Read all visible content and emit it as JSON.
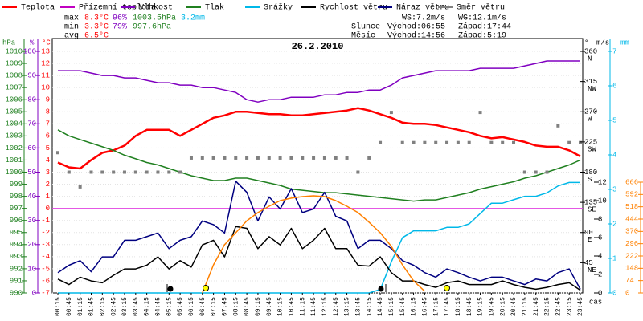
{
  "chart_data": {
    "type": "line",
    "title": "26.2.2010",
    "xlabel": "čas",
    "ylabel": "°C",
    "ylim": [
      -7,
      13
    ],
    "yticks": [
      -7,
      -6,
      -5,
      -4,
      -3,
      -2,
      -1,
      0,
      1,
      2,
      3,
      4,
      5,
      6,
      7,
      8,
      9,
      10,
      11,
      12,
      13
    ],
    "axes": {
      "hPa": {
        "label": "hPa",
        "ylim": [
          990,
          1010
        ],
        "yticks": [
          990,
          991,
          992,
          993,
          994,
          995,
          996,
          997,
          998,
          999,
          1000,
          1001,
          1002,
          1003,
          1004,
          1005,
          1006,
          1007,
          1008,
          1009,
          1010
        ]
      },
      "pct": {
        "label": "%",
        "ylim": [
          0,
          100
        ],
        "yticks": [
          0,
          10,
          20,
          30,
          40,
          50,
          60,
          70,
          80,
          90,
          100
        ]
      },
      "deg": {
        "label": "°",
        "ylim": [
          0,
          360
        ],
        "yticks": [
          45,
          90,
          135,
          180,
          225,
          270,
          315,
          360
        ],
        "compass": [
          "NE",
          "E",
          "SE",
          "S",
          "SW",
          "W",
          "NW",
          "N"
        ]
      },
      "ms": {
        "label": "m/s",
        "ylim": [
          0,
          12
        ],
        "yticks": [
          0,
          2,
          4,
          6,
          8,
          10,
          12
        ]
      },
      "mm": {
        "label": "mm",
        "ylim": [
          0,
          7
        ],
        "yticks": [
          0,
          1,
          2,
          3,
          4,
          5,
          6,
          7
        ]
      },
      "wm": {
        "ylim": [
          0,
          666
        ],
        "yticks": [
          0,
          74,
          148,
          222,
          296,
          370,
          444,
          518,
          592,
          666
        ]
      }
    },
    "categories": [
      "00:15",
      "00:45",
      "01:15",
      "01:45",
      "02:15",
      "02:45",
      "03:15",
      "03:45",
      "04:15",
      "04:45",
      "05:15",
      "05:45",
      "06:15",
      "06:45",
      "07:15",
      "07:45",
      "08:15",
      "08:45",
      "09:15",
      "09:45",
      "10:15",
      "10:45",
      "11:15",
      "11:45",
      "12:15",
      "12:45",
      "13:15",
      "13:45",
      "14:15",
      "14:45",
      "15:15",
      "15:45",
      "16:15",
      "16:45",
      "17:15",
      "17:45",
      "18:15",
      "18:45",
      "19:15",
      "19:45",
      "20:15",
      "20:45",
      "21:15",
      "21:45",
      "22:15",
      "22:45",
      "23:15",
      "23:45"
    ],
    "series": [
      {
        "name": "Teplota",
        "color": "#ff0000",
        "values": [
          3.8,
          3.4,
          3.3,
          4.0,
          4.6,
          4.8,
          5.2,
          6.0,
          6.5,
          6.5,
          6.5,
          6.0,
          6.5,
          7.0,
          7.5,
          7.7,
          8.0,
          8.0,
          7.9,
          7.8,
          7.8,
          7.7,
          7.7,
          7.8,
          7.9,
          8.0,
          8.1,
          8.3,
          8.1,
          7.8,
          7.5,
          7.1,
          7.0,
          7.0,
          6.9,
          6.7,
          6.5,
          6.3,
          6.0,
          5.8,
          5.9,
          5.7,
          5.5,
          5.2,
          5.1,
          5.1,
          4.8,
          4.3
        ]
      },
      {
        "name": "Přízemní teplota",
        "color": "#c000c0",
        "values": [
          null,
          null,
          null,
          null,
          null,
          null,
          null,
          null,
          null,
          null,
          null,
          null,
          null,
          null,
          null,
          null,
          null,
          null,
          null,
          null,
          null,
          null,
          null,
          null,
          null,
          null,
          null,
          null,
          null,
          null,
          null,
          null,
          null,
          null,
          null,
          null,
          null,
          null,
          null,
          null,
          null,
          null,
          null,
          null,
          null,
          null,
          null,
          null
        ]
      },
      {
        "name": "Vlhkost",
        "color": "#8000c0",
        "axis": "pct",
        "values": [
          92,
          92,
          92,
          91,
          90,
          90,
          89,
          89,
          88,
          87,
          87,
          86,
          86,
          85,
          85,
          84,
          83,
          80,
          79,
          80,
          80,
          81,
          81,
          81,
          82,
          82,
          83,
          83,
          84,
          84,
          86,
          89,
          90,
          91,
          92,
          92,
          92,
          92,
          93,
          93,
          93,
          93,
          94,
          95,
          96,
          96,
          96,
          96
        ]
      },
      {
        "name": "Tlak",
        "color": "#208020",
        "axis": "hPa",
        "values": [
          1003.5,
          1003.0,
          1002.7,
          1002.4,
          1002.1,
          1001.8,
          1001.4,
          1001.1,
          1000.8,
          1000.6,
          1000.3,
          1000.0,
          999.7,
          999.5,
          999.3,
          999.3,
          999.5,
          999.5,
          999.3,
          999.1,
          998.9,
          998.6,
          998.5,
          998.4,
          998.3,
          998.3,
          998.2,
          998.1,
          998.0,
          997.9,
          997.8,
          997.7,
          997.6,
          997.7,
          997.7,
          997.9,
          998.1,
          998.3,
          998.6,
          998.8,
          999.0,
          999.2,
          999.5,
          999.7,
          1000.0,
          1000.3,
          1000.6,
          1001.0
        ]
      },
      {
        "name": "Srážky",
        "color": "#00b8e8",
        "axis": "mm",
        "values": [
          0,
          0,
          0,
          0,
          0,
          0,
          0,
          0,
          0,
          0,
          0,
          0,
          0,
          0,
          0,
          0,
          0,
          0,
          0,
          0,
          0,
          0,
          0,
          0,
          0,
          0,
          0,
          0,
          0,
          0.1,
          0.9,
          1.6,
          1.8,
          1.8,
          1.8,
          1.9,
          1.9,
          2.0,
          2.3,
          2.6,
          2.6,
          2.7,
          2.8,
          2.8,
          2.9,
          3.1,
          3.2,
          3.2
        ]
      },
      {
        "name": "Rychlost větru",
        "color": "#000000",
        "axis": "ms",
        "values": [
          1.5,
          0.9,
          1.7,
          1.3,
          1.1,
          1.9,
          2.6,
          2.6,
          3.0,
          3.9,
          2.6,
          3.5,
          2.8,
          5.2,
          5.7,
          3.9,
          7.2,
          7.0,
          4.8,
          6.1,
          5.2,
          7.0,
          4.8,
          5.7,
          7.0,
          4.8,
          4.8,
          3.0,
          2.9,
          3.9,
          2.2,
          1.3,
          1.3,
          0.9,
          0.6,
          1.1,
          1.3,
          0.9,
          0.9,
          0.9,
          1.3,
          0.9,
          0.6,
          0.4,
          0.6,
          0.9,
          1.1,
          0.3
        ]
      },
      {
        "name": "Náraz větru",
        "color": "#000080",
        "axis": "ms",
        "values": [
          2.2,
          3.0,
          3.5,
          2.3,
          3.9,
          3.9,
          5.7,
          5.7,
          6.1,
          6.5,
          4.8,
          5.7,
          6.1,
          7.8,
          7.4,
          6.5,
          12.1,
          10.9,
          7.8,
          10.4,
          9.1,
          11.3,
          8.7,
          9.1,
          10.9,
          8.3,
          7.8,
          4.8,
          5.7,
          5.7,
          4.8,
          3.5,
          3.0,
          2.2,
          1.7,
          2.6,
          2.2,
          1.7,
          1.3,
          1.7,
          1.7,
          1.3,
          0.9,
          1.5,
          1.3,
          2.2,
          2.6,
          0.4
        ]
      },
      {
        "name": "Směr větru",
        "color": "#808080",
        "axis": "deg",
        "style": "points",
        "values": [
          209,
          180,
          158,
          180,
          180,
          180,
          180,
          180,
          180,
          180,
          180,
          180,
          201,
          201,
          201,
          201,
          201,
          201,
          201,
          201,
          201,
          201,
          201,
          201,
          201,
          201,
          201,
          180,
          201,
          224,
          269,
          224,
          224,
          224,
          224,
          224,
          224,
          224,
          269,
          224,
          224,
          224,
          180,
          180,
          180,
          249,
          224,
          224
        ]
      },
      {
        "color": "#ff8000",
        "axis": "wm",
        "values": [
          null,
          null,
          null,
          null,
          null,
          null,
          null,
          null,
          null,
          null,
          null,
          null,
          null,
          0,
          169,
          290,
          362,
          434,
          483,
          521,
          555,
          570,
          579,
          584,
          579,
          555,
          521,
          483,
          425,
          362,
          280,
          169,
          72,
          10,
          null,
          null,
          null,
          null,
          null,
          null,
          null,
          null,
          null,
          null,
          null,
          null,
          null,
          null
        ]
      }
    ],
    "stats": [
      {
        "label": "max",
        "values": [
          "8.3°C",
          "96%",
          "1003.5hPa",
          "3.2mm"
        ]
      },
      {
        "label": "min",
        "values": [
          "3.3°C",
          "79%",
          "997.6hPa"
        ]
      },
      {
        "label": "avg",
        "values": [
          "6.5°C"
        ]
      }
    ],
    "wind": [
      "WS:7.2m/s",
      "WG:12.1m/s"
    ],
    "sun": {
      "label": "Slunce",
      "rise": "Východ:06:55",
      "set": "Západ:17:44"
    },
    "moon": {
      "label": "Měsíc",
      "rise": "Východ:14:56",
      "set": "Západ:5:19"
    }
  }
}
